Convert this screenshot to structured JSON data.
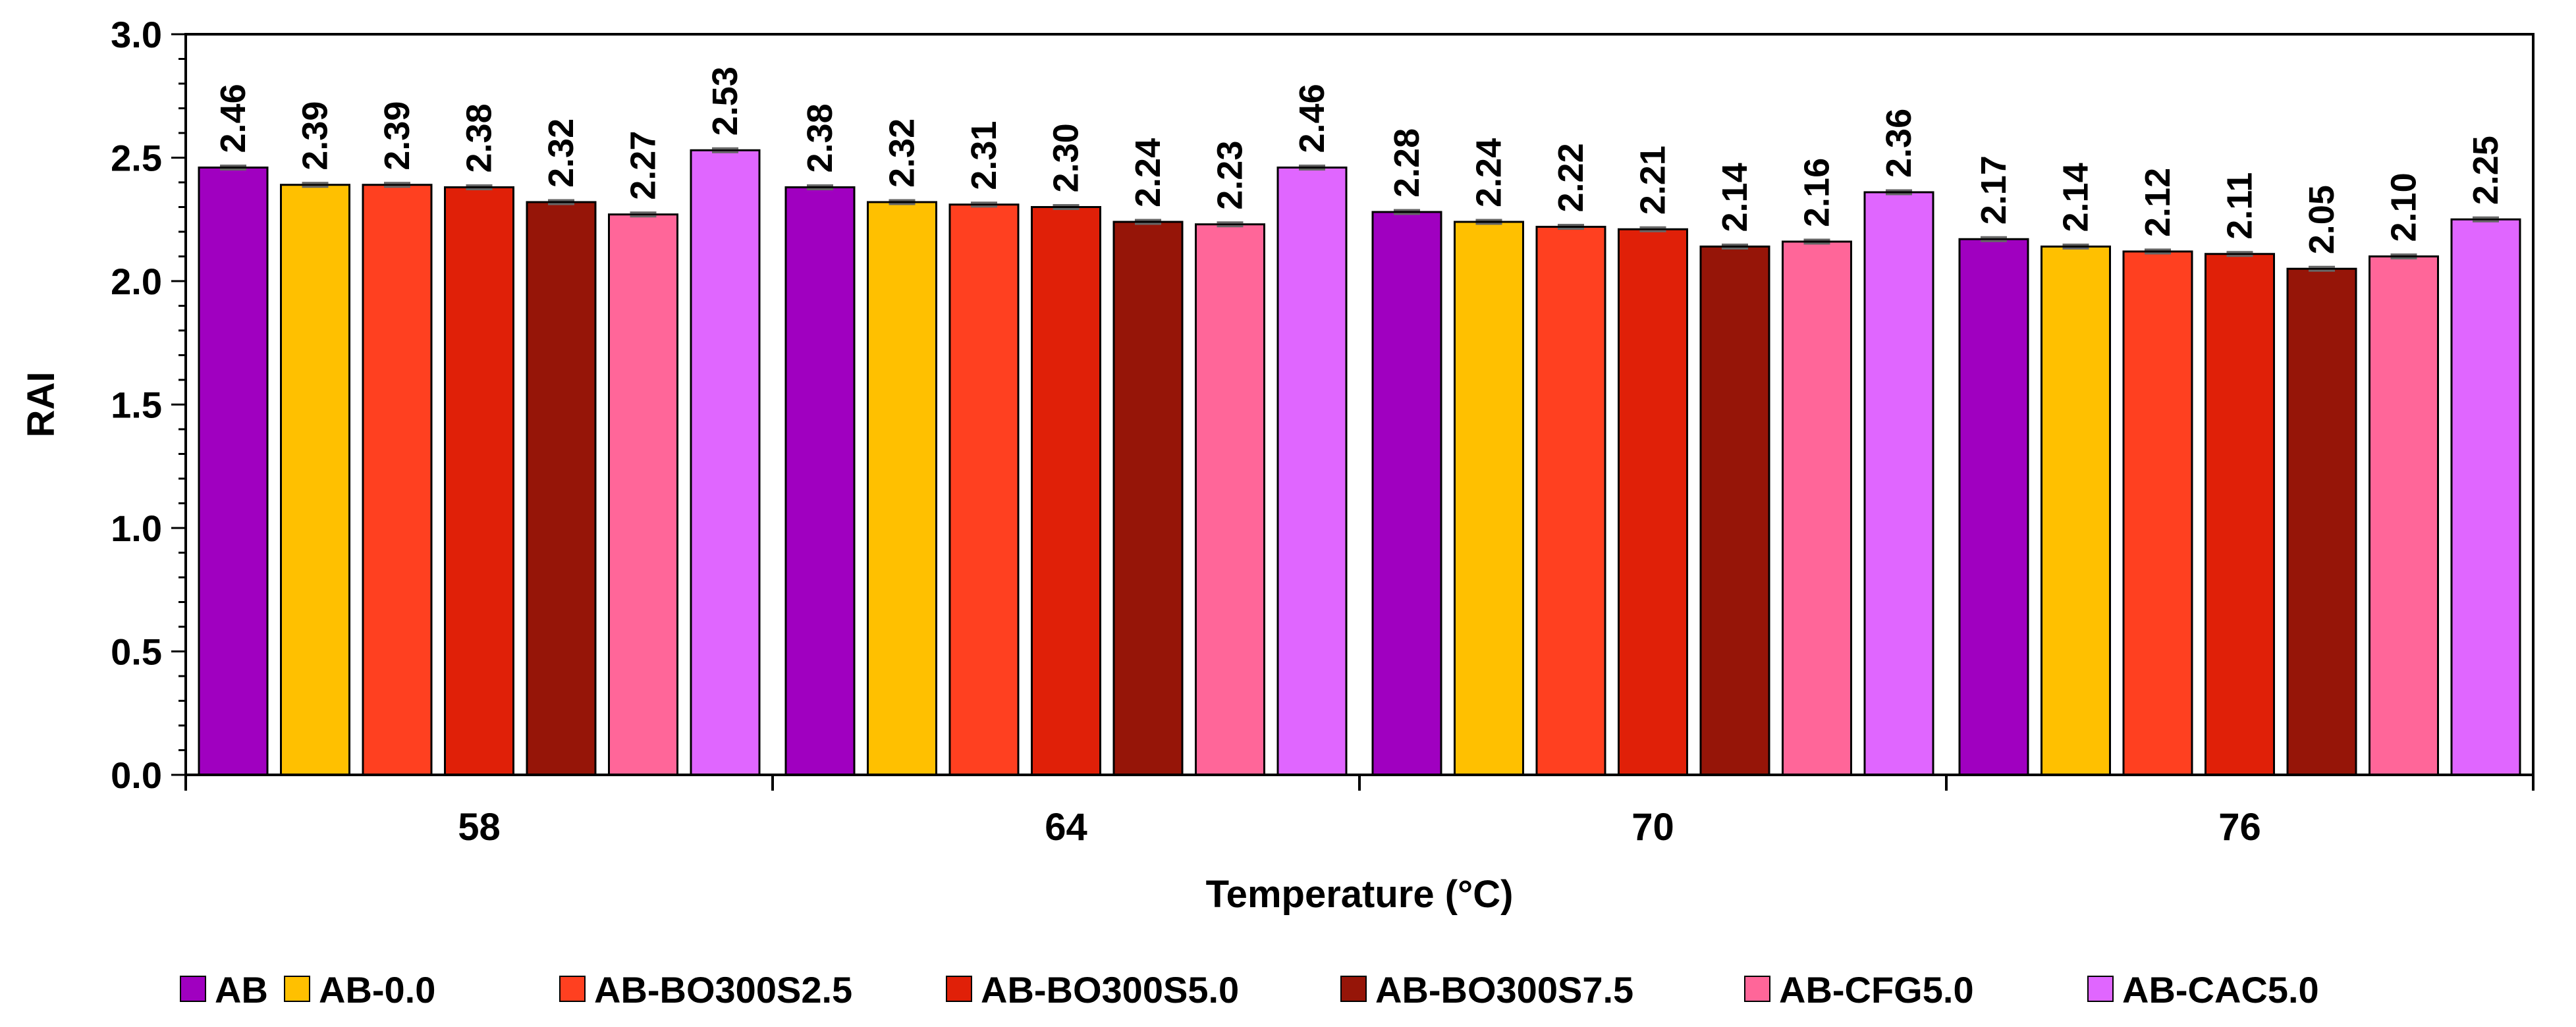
{
  "chart_data": {
    "type": "bar",
    "title": "",
    "xlabel": "Temperature (°C)",
    "ylabel": "RAI",
    "ylim": [
      0,
      3.0
    ],
    "yticks": [
      "0.0",
      "0.5",
      "1.0",
      "1.5",
      "2.0",
      "2.5",
      "3.0"
    ],
    "categories": [
      "58",
      "64",
      "70",
      "76"
    ],
    "legend_position": "bottom",
    "series": [
      {
        "name": "AB",
        "color": "#A000C0",
        "values": [
          2.46,
          2.38,
          2.28,
          2.17
        ],
        "labels": [
          "2.46",
          "2.38",
          "2.28",
          "2.17"
        ]
      },
      {
        "name": "AB-0.0",
        "color": "#FFC000",
        "values": [
          2.39,
          2.32,
          2.24,
          2.14
        ],
        "labels": [
          "2.39",
          "2.32",
          "2.24",
          "2.14"
        ]
      },
      {
        "name": "AB-BO300S2.5",
        "color": "#FF4020",
        "values": [
          2.39,
          2.31,
          2.22,
          2.12
        ],
        "labels": [
          "2.39",
          "2.31",
          "2.22",
          "2.12"
        ]
      },
      {
        "name": "AB-BO300S5.0",
        "color": "#E02008",
        "values": [
          2.38,
          2.3,
          2.21,
          2.11
        ],
        "labels": [
          "2.38",
          "2.30",
          "2.21",
          "2.11"
        ]
      },
      {
        "name": "AB-BO300S7.5",
        "color": "#961508",
        "values": [
          2.32,
          2.24,
          2.14,
          2.05
        ],
        "labels": [
          "2.32",
          "2.24",
          "2.14",
          "2.05"
        ]
      },
      {
        "name": "AB-CFG5.0",
        "color": "#FF6699",
        "values": [
          2.27,
          2.23,
          2.16,
          2.1
        ],
        "labels": [
          "2.27",
          "2.23",
          "2.16",
          "2.10"
        ]
      },
      {
        "name": "AB-CAC5.0",
        "color": "#E066FF",
        "values": [
          2.53,
          2.46,
          2.36,
          2.25
        ],
        "labels": [
          "2.53",
          "2.46",
          "2.36",
          "2.25"
        ]
      }
    ]
  }
}
